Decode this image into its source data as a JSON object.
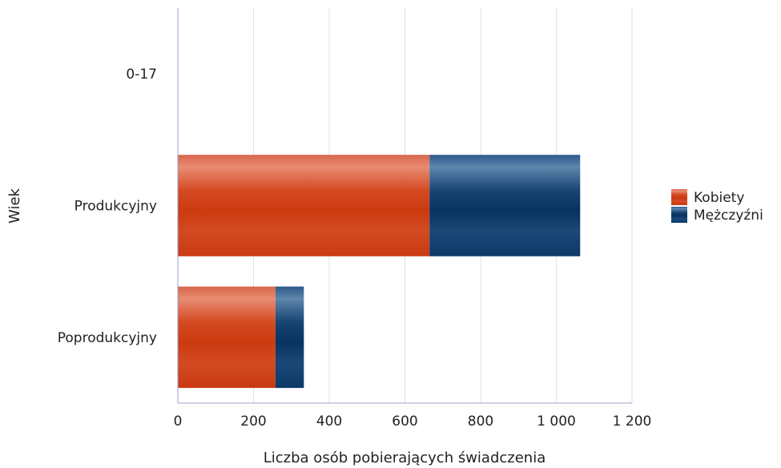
{
  "chart_data": {
    "type": "bar",
    "orientation": "horizontal",
    "stacked": true,
    "categories": [
      "0-17",
      "Produkcyjny",
      "Poprodukcyjny"
    ],
    "series": [
      {
        "name": "Kobiety",
        "values": [
          0,
          665,
          258
        ],
        "color": "#cc3a12"
      },
      {
        "name": "Mężczyźni",
        "values": [
          0,
          398,
          75
        ],
        "color": "#0b3a6a"
      }
    ],
    "xlabel": "Liczba osób pobierających świadczenia",
    "ylabel": "Wiek",
    "xlim": [
      0,
      1200
    ],
    "xticks": [
      0,
      200,
      400,
      600,
      800,
      1000,
      1200
    ],
    "xtick_labels": [
      "0",
      "200",
      "400",
      "600",
      "800",
      "1 000",
      "1 200"
    ],
    "grid": true,
    "legend_position": "right"
  }
}
